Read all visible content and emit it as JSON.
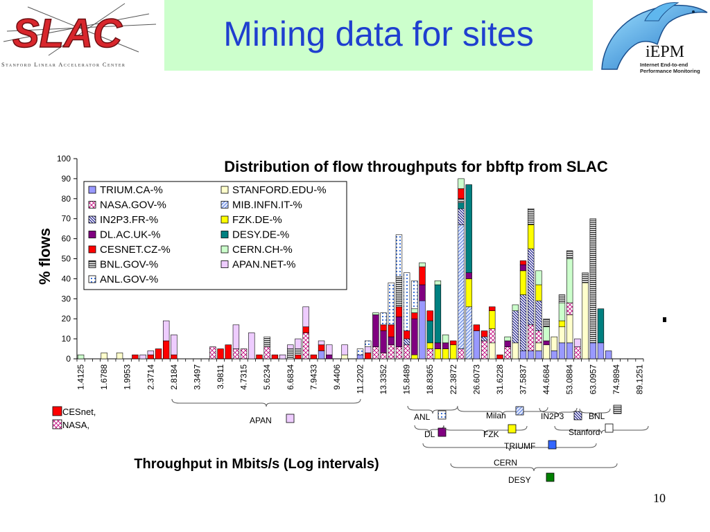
{
  "slide": {
    "title": "Mining data for sites",
    "page_number": "10",
    "slac_logo_text": "SLAC",
    "slac_subtitle": "Stanford Linear Accelerator Center",
    "iepm_name": "iEPM",
    "iepm_subtitle": "Internet End-to-end Performance Monitoring"
  },
  "colors": {
    "title": "#1f3fcf",
    "title_band": "#ccffcc",
    "slac_red": "#d8262c"
  },
  "chart_data": {
    "type": "bar",
    "stacked": true,
    "title": "Distribution of flow throughputs for bbftp  from SLAC",
    "xlabel": "Throughput in Mbits/s (Log intervals)",
    "ylabel": "% flows",
    "ylim": [
      0,
      100
    ],
    "yticks": [
      0,
      10,
      20,
      30,
      40,
      50,
      60,
      70,
      80,
      90,
      100
    ],
    "x_tick_labels": [
      "1.4125",
      "1.6788",
      "1.9953",
      "2.3714",
      "2.8184",
      "3.3497",
      "3.9811",
      "4.7315",
      "5.6234",
      "6.6834",
      "7.9433",
      "9.4406",
      "11.2202",
      "13.3352",
      "15.8489",
      "18.8365",
      "22.3872",
      "26.6073",
      "31.6228",
      "37.5837",
      "44.6684",
      "53.0884",
      "63.0957",
      "74.9894",
      "89.1251"
    ],
    "x_tick_every_bins": 3,
    "bin_count": 73,
    "legend": [
      {
        "name": "TRIUM.CA-%",
        "color": "#9999ff",
        "pattern": "solid"
      },
      {
        "name": "STANFORD.EDU-%",
        "color": "#ffffcc",
        "pattern": "solid"
      },
      {
        "name": "NASA.GOV-%",
        "color": "#ffffff",
        "pattern": "cross"
      },
      {
        "name": "MIB.INFN.IT-%",
        "color": "#c7d7ff",
        "pattern": "diag"
      },
      {
        "name": "IN2P3.FR-%",
        "color": "#ffffff",
        "pattern": "diag-dense"
      },
      {
        "name": "FZK.DE-%",
        "color": "#ffff00",
        "pattern": "solid"
      },
      {
        "name": "DL.AC.UK-%",
        "color": "#800080",
        "pattern": "solid"
      },
      {
        "name": "DESY.DE-%",
        "color": "#008080",
        "pattern": "solid"
      },
      {
        "name": "CESNET.CZ-%",
        "color": "#ff0000",
        "pattern": "solid"
      },
      {
        "name": "CERN.CH-%",
        "color": "#ccffcc",
        "pattern": "solid"
      },
      {
        "name": "BNL.GOV-%",
        "color": "#ffffff",
        "pattern": "hlines"
      },
      {
        "name": "APAN.NET-%",
        "color": "#eeccff",
        "pattern": "solid"
      },
      {
        "name": "ANL.GOV-%",
        "color": "#ffffff",
        "pattern": "dots"
      }
    ],
    "bars": [
      {
        "bin": 0,
        "segments": [
          [
            "CERN.CH-%",
            2
          ]
        ]
      },
      {
        "bin": 3,
        "segments": [
          [
            "STANFORD.EDU-%",
            3
          ]
        ]
      },
      {
        "bin": 5,
        "segments": [
          [
            "STANFORD.EDU-%",
            3
          ]
        ]
      },
      {
        "bin": 7,
        "segments": [
          [
            "CESNET.CZ-%",
            2
          ]
        ]
      },
      {
        "bin": 8,
        "segments": [
          [
            "APAN.NET-%",
            2
          ]
        ]
      },
      {
        "bin": 9,
        "segments": [
          [
            "CESNET.CZ-%",
            2
          ],
          [
            "APAN.NET-%",
            2
          ]
        ]
      },
      {
        "bin": 10,
        "segments": [
          [
            "CESNET.CZ-%",
            5
          ]
        ]
      },
      {
        "bin": 11,
        "segments": [
          [
            "CESNET.CZ-%",
            9
          ],
          [
            "APAN.NET-%",
            10
          ]
        ]
      },
      {
        "bin": 12,
        "segments": [
          [
            "CESNET.CZ-%",
            2
          ],
          [
            "APAN.NET-%",
            10
          ]
        ]
      },
      {
        "bin": 17,
        "segments": [
          [
            "NASA.GOV-%",
            6
          ]
        ]
      },
      {
        "bin": 18,
        "segments": [
          [
            "CESNET.CZ-%",
            5
          ]
        ]
      },
      {
        "bin": 19,
        "segments": [
          [
            "CESNET.CZ-%",
            7
          ]
        ]
      },
      {
        "bin": 20,
        "segments": [
          [
            "NASA.GOV-%",
            5
          ],
          [
            "APAN.NET-%",
            12
          ]
        ]
      },
      {
        "bin": 21,
        "segments": [
          [
            "NASA.GOV-%",
            5
          ]
        ]
      },
      {
        "bin": 22,
        "segments": [
          [
            "APAN.NET-%",
            13
          ]
        ]
      },
      {
        "bin": 23,
        "segments": [
          [
            "CESNET.CZ-%",
            2
          ]
        ]
      },
      {
        "bin": 24,
        "segments": [
          [
            "NASA.GOV-%",
            6
          ],
          [
            "BNL.GOV-%",
            5
          ]
        ]
      },
      {
        "bin": 25,
        "segments": [
          [
            "CESNET.CZ-%",
            2
          ]
        ]
      },
      {
        "bin": 26,
        "segments": [
          [
            "APAN.NET-%",
            2
          ]
        ]
      },
      {
        "bin": 27,
        "segments": [
          [
            "BNL.GOV-%",
            5
          ],
          [
            "APAN.NET-%",
            2
          ]
        ]
      },
      {
        "bin": 28,
        "segments": [
          [
            "CESNET.CZ-%",
            2
          ],
          [
            "BNL.GOV-%",
            3
          ],
          [
            "APAN.NET-%",
            5
          ]
        ]
      },
      {
        "bin": 29,
        "segments": [
          [
            "NASA.GOV-%",
            13
          ],
          [
            "CESNET.CZ-%",
            3
          ],
          [
            "APAN.NET-%",
            10
          ]
        ]
      },
      {
        "bin": 30,
        "segments": [
          [
            "CESNET.CZ-%",
            2
          ]
        ]
      },
      {
        "bin": 31,
        "segments": [
          [
            "TRIUM.CA-%",
            4
          ],
          [
            "CESNET.CZ-%",
            3
          ],
          [
            "APAN.NET-%",
            2
          ]
        ]
      },
      {
        "bin": 32,
        "segments": [
          [
            "DL.AC.UK-%",
            2
          ],
          [
            "APAN.NET-%",
            5
          ]
        ]
      },
      {
        "bin": 34,
        "segments": [
          [
            "STANFORD.EDU-%",
            2
          ],
          [
            "APAN.NET-%",
            5
          ]
        ]
      },
      {
        "bin": 36,
        "segments": [
          [
            "TRIUM.CA-%",
            2
          ],
          [
            "ANL.GOV-%",
            3
          ]
        ]
      },
      {
        "bin": 37,
        "segments": [
          [
            "CESNET.CZ-%",
            3
          ],
          [
            "APAN.NET-%",
            3
          ],
          [
            "ANL.GOV-%",
            3
          ]
        ]
      },
      {
        "bin": 38,
        "segments": [
          [
            "NASA.GOV-%",
            6
          ],
          [
            "DL.AC.UK-%",
            16
          ],
          [
            "CERN.CH-%",
            1
          ]
        ]
      },
      {
        "bin": 39,
        "segments": [
          [
            "NASA.GOV-%",
            3
          ],
          [
            "DL.AC.UK-%",
            11
          ],
          [
            "CESNET.CZ-%",
            3
          ],
          [
            "ANL.GOV-%",
            6
          ]
        ]
      },
      {
        "bin": 40,
        "segments": [
          [
            "NASA.GOV-%",
            7
          ],
          [
            "DL.AC.UK-%",
            4
          ],
          [
            "CESNET.CZ-%",
            6
          ],
          [
            "ANL.GOV-%",
            21
          ]
        ]
      },
      {
        "bin": 41,
        "segments": [
          [
            "NASA.GOV-%",
            6
          ],
          [
            "DL.AC.UK-%",
            15
          ],
          [
            "CESNET.CZ-%",
            5
          ],
          [
            "BNL.GOV-%",
            15
          ],
          [
            "ANL.GOV-%",
            21
          ]
        ]
      },
      {
        "bin": 42,
        "segments": [
          [
            "NASA.GOV-%",
            7
          ],
          [
            "IN2P3.FR-%",
            3
          ],
          [
            "CESNET.CZ-%",
            4
          ],
          [
            "ANL.GOV-%",
            29
          ]
        ]
      },
      {
        "bin": 43,
        "segments": [
          [
            "FZK.DE-%",
            2
          ],
          [
            "DL.AC.UK-%",
            18
          ],
          [
            "CESNET.CZ-%",
            3
          ],
          [
            "CERN.CH-%",
            2
          ],
          [
            "ANL.GOV-%",
            14
          ]
        ]
      },
      {
        "bin": 44,
        "segments": [
          [
            "TRIUM.CA-%",
            29
          ],
          [
            "DL.AC.UK-%",
            8
          ],
          [
            "CESNET.CZ-%",
            9
          ],
          [
            "CERN.CH-%",
            2
          ]
        ]
      },
      {
        "bin": 45,
        "segments": [
          [
            "NASA.GOV-%",
            5
          ],
          [
            "FZK.DE-%",
            3
          ],
          [
            "DESY.DE-%",
            11
          ],
          [
            "CESNET.CZ-%",
            5
          ]
        ]
      },
      {
        "bin": 46,
        "segments": [
          [
            "FZK.DE-%",
            5
          ],
          [
            "DL.AC.UK-%",
            3
          ],
          [
            "DESY.DE-%",
            29
          ],
          [
            "CERN.CH-%",
            2
          ]
        ]
      },
      {
        "bin": 47,
        "segments": [
          [
            "FZK.DE-%",
            5
          ],
          [
            "DL.AC.UK-%",
            3
          ],
          [
            "CERN.CH-%",
            4
          ]
        ]
      },
      {
        "bin": 48,
        "segments": [
          [
            "FZK.DE-%",
            7
          ],
          [
            "CESNET.CZ-%",
            2
          ]
        ]
      },
      {
        "bin": 49,
        "segments": [
          [
            "NASA.GOV-%",
            5
          ],
          [
            "MIB.INFN.IT-%",
            62
          ],
          [
            "IN2P3.FR-%",
            8
          ],
          [
            "DESY.DE-%",
            3
          ],
          [
            "BNL.GOV-%",
            2
          ],
          [
            "CESNET.CZ-%",
            5
          ],
          [
            "CERN.CH-%",
            5
          ]
        ]
      },
      {
        "bin": 50,
        "segments": [
          [
            "MIB.INFN.IT-%",
            26
          ],
          [
            "FZK.DE-%",
            14
          ],
          [
            "DL.AC.UK-%",
            3
          ],
          [
            "DESY.DE-%",
            44
          ]
        ]
      },
      {
        "bin": 51,
        "segments": [
          [
            "TRIUM.CA-%",
            14
          ],
          [
            "CESNET.CZ-%",
            3
          ]
        ]
      },
      {
        "bin": 52,
        "segments": [
          [
            "NASA.GOV-%",
            9
          ],
          [
            "IN2P3.FR-%",
            2
          ],
          [
            "CESNET.CZ-%",
            3
          ]
        ]
      },
      {
        "bin": 53,
        "segments": [
          [
            "STANFORD.EDU-%",
            8
          ],
          [
            "NASA.GOV-%",
            7
          ],
          [
            "FZK.DE-%",
            9
          ],
          [
            "CESNET.CZ-%",
            2
          ]
        ]
      },
      {
        "bin": 54,
        "segments": [
          [
            "CESNET.CZ-%",
            2
          ]
        ]
      },
      {
        "bin": 55,
        "segments": [
          [
            "NASA.GOV-%",
            6
          ],
          [
            "DL.AC.UK-%",
            3
          ],
          [
            "CERN.CH-%",
            2
          ]
        ]
      },
      {
        "bin": 56,
        "segments": [
          [
            "STANFORD.EDU-%",
            8
          ],
          [
            "IN2P3.FR-%",
            16
          ],
          [
            "CERN.CH-%",
            3
          ]
        ]
      },
      {
        "bin": 57,
        "segments": [
          [
            "TRIUM.CA-%",
            4
          ],
          [
            "IN2P3.FR-%",
            28
          ],
          [
            "FZK.DE-%",
            12
          ],
          [
            "DL.AC.UK-%",
            3
          ],
          [
            "CESNET.CZ-%",
            2
          ]
        ]
      },
      {
        "bin": 58,
        "segments": [
          [
            "TRIUM.CA-%",
            4
          ],
          [
            "NASA.GOV-%",
            13
          ],
          [
            "IN2P3.FR-%",
            38
          ],
          [
            "FZK.DE-%",
            12
          ],
          [
            "BNL.GOV-%",
            8
          ]
        ]
      },
      {
        "bin": 59,
        "segments": [
          [
            "TRIUM.CA-%",
            4
          ],
          [
            "STANFORD.EDU-%",
            4
          ],
          [
            "NASA.GOV-%",
            6
          ],
          [
            "IN2P3.FR-%",
            15
          ],
          [
            "FZK.DE-%",
            8
          ],
          [
            "CERN.CH-%",
            7
          ]
        ]
      },
      {
        "bin": 60,
        "segments": [
          [
            "STANFORD.EDU-%",
            7
          ],
          [
            "DL.AC.UK-%",
            2
          ],
          [
            "CERN.CH-%",
            7
          ],
          [
            "BNL.GOV-%",
            4
          ]
        ]
      },
      {
        "bin": 61,
        "segments": [
          [
            "TRIUM.CA-%",
            4
          ],
          [
            "STANFORD.EDU-%",
            7
          ]
        ]
      },
      {
        "bin": 62,
        "segments": [
          [
            "TRIUM.CA-%",
            8
          ],
          [
            "STANFORD.EDU-%",
            8
          ],
          [
            "FZK.DE-%",
            3
          ],
          [
            "CERN.CH-%",
            9
          ],
          [
            "BNL.GOV-%",
            4
          ]
        ]
      },
      {
        "bin": 63,
        "segments": [
          [
            "TRIUM.CA-%",
            8
          ],
          [
            "STANFORD.EDU-%",
            14
          ],
          [
            "NASA.GOV-%",
            6
          ],
          [
            "CERN.CH-%",
            22
          ],
          [
            "BNL.GOV-%",
            4
          ]
        ]
      },
      {
        "bin": 64,
        "segments": [
          [
            "NASA.GOV-%",
            6
          ],
          [
            "APAN.NET-%",
            4
          ]
        ]
      },
      {
        "bin": 65,
        "segments": [
          [
            "STANFORD.EDU-%",
            38
          ],
          [
            "BNL.GOV-%",
            5
          ]
        ]
      },
      {
        "bin": 66,
        "segments": [
          [
            "TRIUM.CA-%",
            8
          ],
          [
            "BNL.GOV-%",
            62
          ]
        ]
      },
      {
        "bin": 67,
        "segments": [
          [
            "TRIUM.CA-%",
            8
          ],
          [
            "DESY.DE-%",
            17
          ]
        ]
      },
      {
        "bin": 68,
        "segments": [
          [
            "TRIUM.CA-%",
            4
          ]
        ]
      }
    ],
    "annotations": {
      "side_legend": [
        {
          "label": "CESnet,",
          "color": "#ff0000",
          "pattern": "solid"
        },
        {
          "label": "NASA,",
          "color": "#ffffff",
          "pattern": "cross"
        }
      ],
      "ranges": [
        {
          "label": "APAN",
          "color": "#eeccff",
          "pattern": "solid"
        },
        {
          "label": "ANL",
          "color": "#ffffff",
          "pattern": "dots"
        },
        {
          "label": "Milan",
          "color": "#c7d7ff",
          "pattern": "diag"
        },
        {
          "label": "IN2P3",
          "color": "#ffffff",
          "pattern": "diag-dense"
        },
        {
          "label": "BNL",
          "color": "#ffffff",
          "pattern": "hlines"
        },
        {
          "label": "DL",
          "color": "#800080",
          "pattern": "solid"
        },
        {
          "label": "FZK",
          "color": "#ffff00",
          "pattern": "solid"
        },
        {
          "label": "Stanford",
          "color": "#ffffff",
          "pattern": "solid"
        },
        {
          "label": "TRIUMF",
          "color": "#3366ff",
          "pattern": "solid"
        },
        {
          "label": "CERN",
          "color": "",
          "pattern": "none"
        },
        {
          "label": "DESY",
          "color": "#008000",
          "pattern": "solid"
        }
      ]
    }
  }
}
